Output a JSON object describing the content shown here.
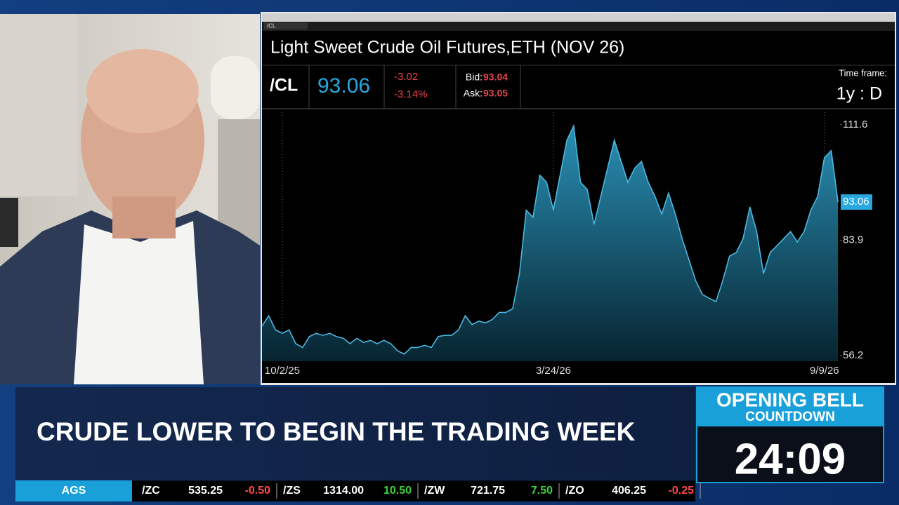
{
  "chart_data": {
    "type": "area",
    "title": "Light Sweet Crude Oil Futures,ETH (NOV 26)",
    "categories": [
      null,
      null,
      null,
      "10/2/25",
      null,
      null,
      null,
      null,
      null,
      null,
      null,
      null,
      null,
      null,
      null,
      null,
      null,
      null,
      null,
      null,
      null,
      null,
      null,
      null,
      null,
      null,
      null,
      null,
      null,
      null,
      null,
      null,
      null,
      null,
      null,
      null,
      null,
      null,
      null,
      null,
      null,
      null,
      null,
      "3/24/26",
      null,
      null,
      null,
      null,
      null,
      null,
      null,
      null,
      null,
      null,
      null,
      null,
      null,
      null,
      null,
      null,
      null,
      null,
      null,
      null,
      null,
      null,
      null,
      null,
      null,
      null,
      null,
      null,
      null,
      null,
      null,
      null,
      null,
      null,
      null,
      null,
      null,
      null,
      null,
      "9/9/26",
      null,
      null
    ],
    "values": [
      63.3,
      65.8,
      62.4,
      61.6,
      62.4,
      59.1,
      58.2,
      60.8,
      61.6,
      61.1,
      61.6,
      60.8,
      60.4,
      59.1,
      60.4,
      59.4,
      59.9,
      59.1,
      59.9,
      59.1,
      57.4,
      56.6,
      58.2,
      58.2,
      58.7,
      58.2,
      60.8,
      61.1,
      61.1,
      62.4,
      65.8,
      63.7,
      64.5,
      64.1,
      64.9,
      66.6,
      66.6,
      67.5,
      75.9,
      91.1,
      89.4,
      99.5,
      97.8,
      91.1,
      99.5,
      107.9,
      111.3,
      97.8,
      96.1,
      87.7,
      94.4,
      101.2,
      107.9,
      102.8,
      97.8,
      101.2,
      102.8,
      97.8,
      94.4,
      90.2,
      95.2,
      90.2,
      84.3,
      79.3,
      74.2,
      70.9,
      70.0,
      69.2,
      74.2,
      80.1,
      81.0,
      84.3,
      91.9,
      86.0,
      75.9,
      81.0,
      82.6,
      84.3,
      86.0,
      83.5,
      86.0,
      91.1,
      94.4,
      103.7,
      105.4,
      93.06
    ],
    "color": "#4bb8e0",
    "ylim": [
      54.9,
      114.6
    ],
    "yticks": [
      56.2,
      83.9,
      111.6
    ]
  },
  "quote": {
    "symbol": "/CL",
    "last": "93.06",
    "change": "-3.02",
    "change_pct": "-3.14%",
    "bid_label": "Bid:",
    "bid": "93.04",
    "ask_label": "Ask:",
    "ask": "93.05",
    "timeframe_label": "Time frame:",
    "timeframe": "1y : D"
  },
  "window": {
    "symbol_input": "/CL"
  },
  "lower_third": {
    "headline": "CRUDE LOWER TO BEGIN THE TRADING WEEK"
  },
  "countdown": {
    "title": "OPENING BELL",
    "subtitle": "COUNTDOWN",
    "time": "24:09"
  },
  "ticker": {
    "section": "AGS",
    "items": [
      {
        "symbol": "/ZC",
        "price": "535.25",
        "change": "-0.50"
      },
      {
        "symbol": "/ZS",
        "price": "1314.00",
        "change": "10.50"
      },
      {
        "symbol": "/ZW",
        "price": "721.75",
        "change": "7.50"
      },
      {
        "symbol": "/ZO",
        "price": "406.25",
        "change": "-0.25"
      }
    ]
  }
}
